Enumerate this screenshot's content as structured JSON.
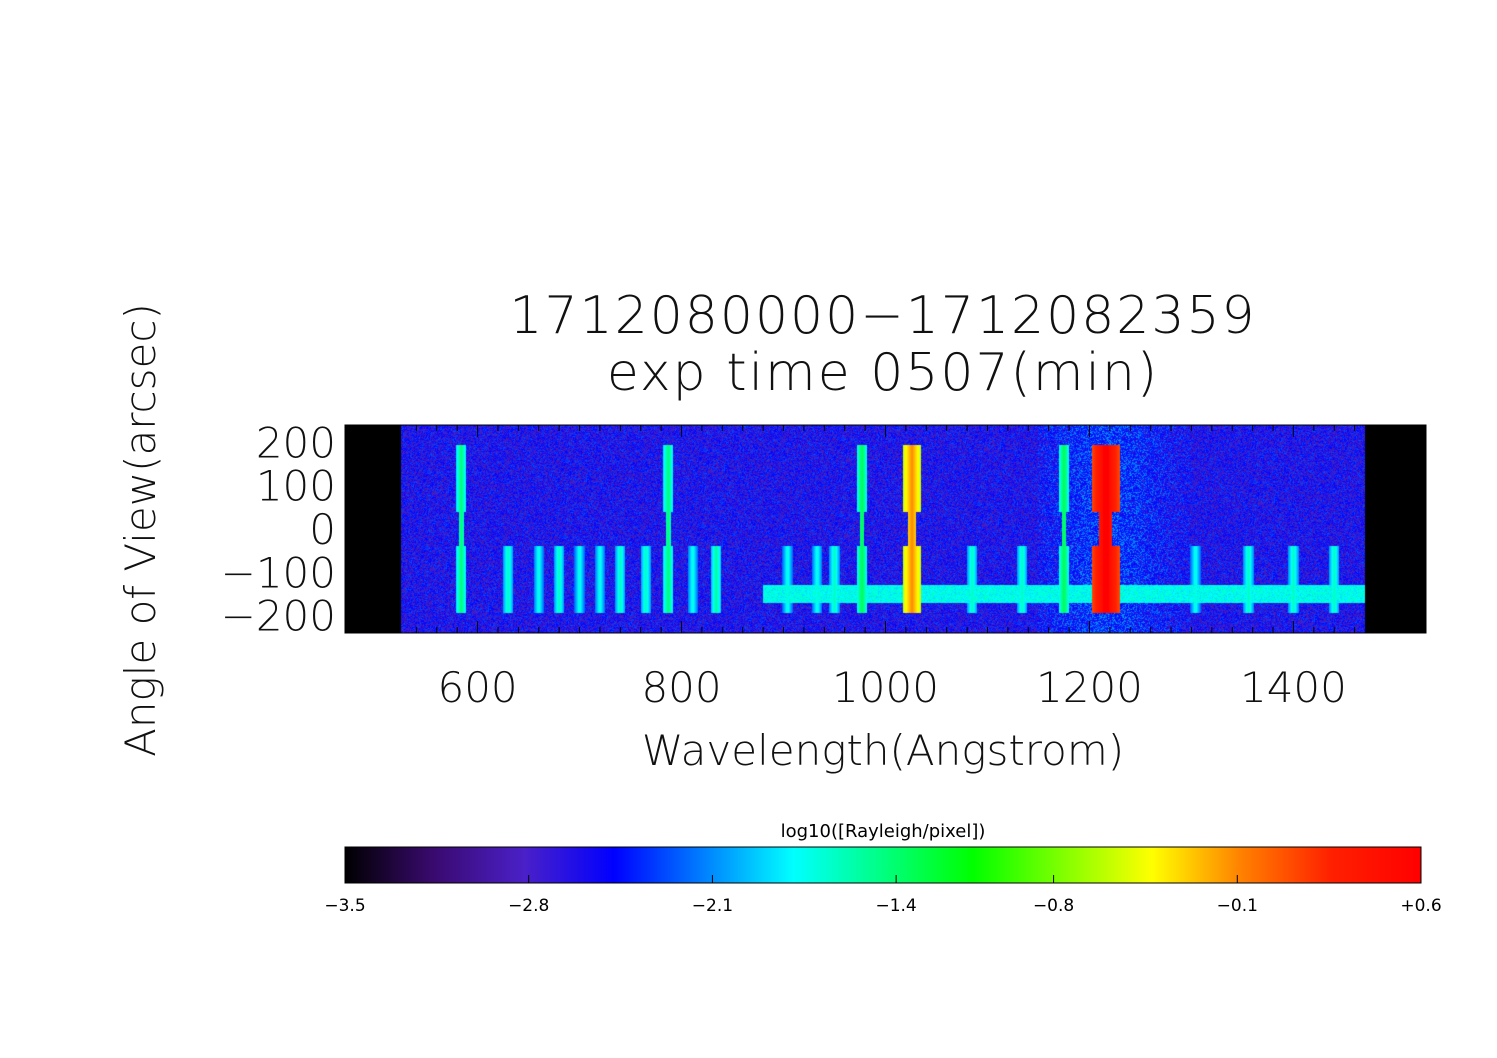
{
  "chart_data": {
    "type": "heatmap",
    "title": "1712080000−1712082359",
    "subtitle": "exp time 0507(min)",
    "xlabel": "Wavelength(Angstrom)",
    "ylabel": "Angle of View(arcsec)",
    "xlim": [
      470,
      1530
    ],
    "ylim": [
      -240,
      240
    ],
    "data_extent_x": [
      525,
      1470
    ],
    "x_ticks": [
      600,
      800,
      1000,
      1200,
      1400
    ],
    "y_ticks": [
      200,
      100,
      0,
      -100,
      -200
    ],
    "y_tick_labels": [
      "200",
      "100",
      "0",
      "−100",
      "−200"
    ],
    "colorbar": {
      "label": "log10([Rayleigh/pixel])",
      "range": [
        -3.5,
        0.6
      ],
      "ticks": [
        -3.5,
        -2.8,
        -2.1,
        -1.4,
        -0.8,
        -0.1,
        0.6
      ],
      "tick_labels": [
        "−3.5",
        "−2.8",
        "−2.1",
        "−1.4",
        "−0.8",
        "−0.1",
        "+0.6"
      ],
      "colormap": [
        "#000000",
        "#3a0a70",
        "#4a20c8",
        "#0000ff",
        "#0080ff",
        "#00ffff",
        "#00ff80",
        "#00ff00",
        "#80ff00",
        "#ffff00",
        "#ff8000",
        "#ff2000",
        "#ff0000"
      ]
    },
    "background_level": -2.6,
    "emission_lines": [
      {
        "wavelength": 584,
        "level": -1.4,
        "lower": true,
        "upper": true
      },
      {
        "wavelength": 630,
        "level": -1.6,
        "lower": true,
        "upper": false
      },
      {
        "wavelength": 660,
        "level": -1.7,
        "lower": true,
        "upper": false
      },
      {
        "wavelength": 680,
        "level": -1.6,
        "lower": true,
        "upper": false
      },
      {
        "wavelength": 700,
        "level": -1.7,
        "lower": true,
        "upper": false
      },
      {
        "wavelength": 720,
        "level": -1.7,
        "lower": true,
        "upper": false
      },
      {
        "wavelength": 740,
        "level": -1.6,
        "lower": true,
        "upper": false
      },
      {
        "wavelength": 765,
        "level": -1.6,
        "lower": true,
        "upper": false
      },
      {
        "wavelength": 787,
        "level": -1.4,
        "lower": true,
        "upper": true
      },
      {
        "wavelength": 811,
        "level": -1.7,
        "lower": true,
        "upper": false
      },
      {
        "wavelength": 834,
        "level": -1.5,
        "lower": true,
        "upper": false
      },
      {
        "wavelength": 904,
        "level": -1.7,
        "lower": true,
        "upper": false
      },
      {
        "wavelength": 933,
        "level": -1.7,
        "lower": true,
        "upper": false
      },
      {
        "wavelength": 950,
        "level": -1.6,
        "lower": true,
        "upper": false
      },
      {
        "wavelength": 977,
        "level": -1.3,
        "lower": true,
        "upper": true
      },
      {
        "wavelength": 1026,
        "level": -0.1,
        "lower": true,
        "upper": true
      },
      {
        "wavelength": 1085,
        "level": -1.6,
        "lower": true,
        "upper": false
      },
      {
        "wavelength": 1134,
        "level": -1.6,
        "lower": true,
        "upper": false
      },
      {
        "wavelength": 1175,
        "level": -1.3,
        "lower": true,
        "upper": true
      },
      {
        "wavelength": 1216,
        "level": 0.6,
        "lower": true,
        "upper": true
      },
      {
        "wavelength": 1304,
        "level": -1.7,
        "lower": true,
        "upper": false
      },
      {
        "wavelength": 1356,
        "level": -1.6,
        "lower": true,
        "upper": false
      },
      {
        "wavelength": 1400,
        "level": -1.6,
        "lower": true,
        "upper": false
      },
      {
        "wavelength": 1440,
        "level": -1.6,
        "lower": true,
        "upper": false
      }
    ]
  }
}
